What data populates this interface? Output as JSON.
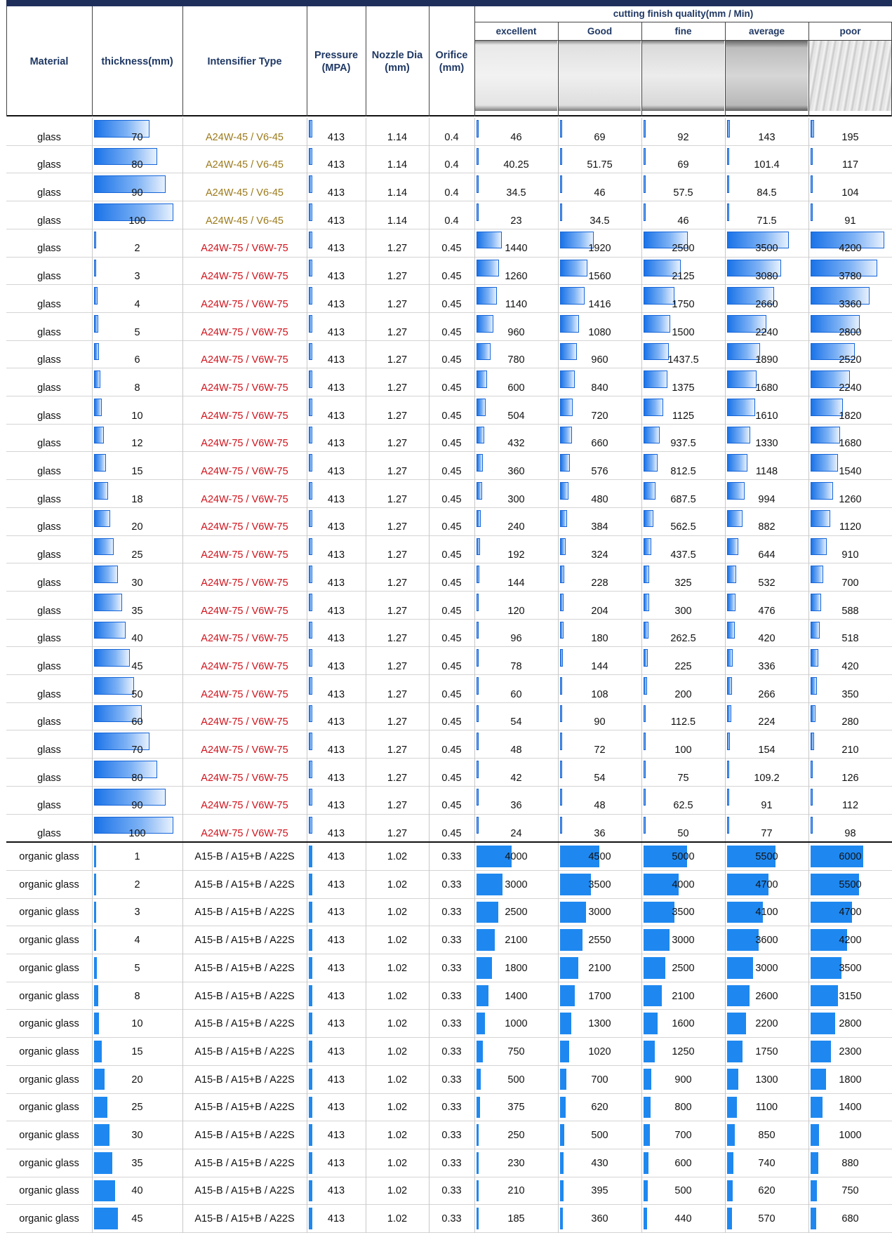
{
  "header": {
    "columns": [
      "Material",
      "thickness(mm)",
      "Intensifier Type",
      "Pressure (MPA)",
      "Nozzle Dia (mm)",
      "Orifice (mm)"
    ],
    "group_title": "cutting finish quality(mm / Min)",
    "quality_levels": [
      "excellent",
      "Good",
      "fine",
      "average",
      "poor"
    ]
  },
  "table": {
    "sections": [
      {
        "text_colors": {
          "A24W-45 / V6-45": "#9c7a1b",
          "A24W-75 / V6W-75": "#d0121b"
        },
        "rows": [
          [
            "glass",
            70,
            "A24W-45 / V6-45",
            413,
            1.14,
            0.4,
            46,
            69,
            92,
            143,
            195
          ],
          [
            "glass",
            80,
            "A24W-45 / V6-45",
            413,
            1.14,
            0.4,
            40.25,
            51.75,
            69,
            101.4,
            117
          ],
          [
            "glass",
            90,
            "A24W-45 / V6-45",
            413,
            1.14,
            0.4,
            34.5,
            46,
            57.5,
            84.5,
            104
          ],
          [
            "glass",
            100,
            "A24W-45 / V6-45",
            413,
            1.14,
            0.4,
            23,
            34.5,
            46,
            71.5,
            91
          ],
          [
            "glass",
            2,
            "A24W-75 / V6W-75",
            413,
            1.27,
            0.45,
            1440,
            1920,
            2500,
            3500,
            4200
          ],
          [
            "glass",
            3,
            "A24W-75 / V6W-75",
            413,
            1.27,
            0.45,
            1260,
            1560,
            2125,
            3080,
            3780
          ],
          [
            "glass",
            4,
            "A24W-75 / V6W-75",
            413,
            1.27,
            0.45,
            1140,
            1416,
            1750,
            2660,
            3360
          ],
          [
            "glass",
            5,
            "A24W-75 / V6W-75",
            413,
            1.27,
            0.45,
            960,
            1080,
            1500,
            2240,
            2800
          ],
          [
            "glass",
            6,
            "A24W-75 / V6W-75",
            413,
            1.27,
            0.45,
            780,
            960,
            1437.5,
            1890,
            2520
          ],
          [
            "glass",
            8,
            "A24W-75 / V6W-75",
            413,
            1.27,
            0.45,
            600,
            840,
            1375,
            1680,
            2240
          ],
          [
            "glass",
            10,
            "A24W-75 / V6W-75",
            413,
            1.27,
            0.45,
            504,
            720,
            1125,
            1610,
            1820
          ],
          [
            "glass",
            12,
            "A24W-75 / V6W-75",
            413,
            1.27,
            0.45,
            432,
            660,
            937.5,
            1330,
            1680
          ],
          [
            "glass",
            15,
            "A24W-75 / V6W-75",
            413,
            1.27,
            0.45,
            360,
            576,
            812.5,
            1148,
            1540
          ],
          [
            "glass",
            18,
            "A24W-75 / V6W-75",
            413,
            1.27,
            0.45,
            300,
            480,
            687.5,
            994,
            1260
          ],
          [
            "glass",
            20,
            "A24W-75 / V6W-75",
            413,
            1.27,
            0.45,
            240,
            384,
            562.5,
            882,
            1120
          ],
          [
            "glass",
            25,
            "A24W-75 / V6W-75",
            413,
            1.27,
            0.45,
            192,
            324,
            437.5,
            644,
            910
          ],
          [
            "glass",
            30,
            "A24W-75 / V6W-75",
            413,
            1.27,
            0.45,
            144,
            228,
            325,
            532,
            700
          ],
          [
            "glass",
            35,
            "A24W-75 / V6W-75",
            413,
            1.27,
            0.45,
            120,
            204,
            300,
            476,
            588
          ],
          [
            "glass",
            40,
            "A24W-75 / V6W-75",
            413,
            1.27,
            0.45,
            96,
            180,
            262.5,
            420,
            518
          ],
          [
            "glass",
            45,
            "A24W-75 / V6W-75",
            413,
            1.27,
            0.45,
            78,
            144,
            225,
            336,
            420
          ],
          [
            "glass",
            50,
            "A24W-75 / V6W-75",
            413,
            1.27,
            0.45,
            60,
            108,
            200,
            266,
            350
          ],
          [
            "glass",
            60,
            "A24W-75 / V6W-75",
            413,
            1.27,
            0.45,
            54,
            90,
            112.5,
            224,
            280
          ],
          [
            "glass",
            70,
            "A24W-75 / V6W-75",
            413,
            1.27,
            0.45,
            48,
            72,
            100,
            154,
            210
          ],
          [
            "glass",
            80,
            "A24W-75 / V6W-75",
            413,
            1.27,
            0.45,
            42,
            54,
            75,
            109.2,
            126
          ],
          [
            "glass",
            90,
            "A24W-75 / V6W-75",
            413,
            1.27,
            0.45,
            36,
            48,
            62.5,
            91,
            112
          ],
          [
            "glass",
            100,
            "A24W-75 / V6W-75",
            413,
            1.27,
            0.45,
            24,
            36,
            50,
            77,
            98
          ]
        ]
      },
      {
        "rows": [
          [
            "organic glass",
            1,
            "A15-B / A15+B / A22S",
            413,
            1.02,
            0.33,
            4000,
            4500,
            5000,
            5500,
            6000
          ],
          [
            "organic glass",
            2,
            "A15-B / A15+B / A22S",
            413,
            1.02,
            0.33,
            3000,
            3500,
            4000,
            4700,
            5500
          ],
          [
            "organic glass",
            3,
            "A15-B / A15+B / A22S",
            413,
            1.02,
            0.33,
            2500,
            3000,
            3500,
            4100,
            4700
          ],
          [
            "organic glass",
            4,
            "A15-B / A15+B / A22S",
            413,
            1.02,
            0.33,
            2100,
            2550,
            3000,
            3600,
            4200
          ],
          [
            "organic glass",
            5,
            "A15-B / A15+B / A22S",
            413,
            1.02,
            0.33,
            1800,
            2100,
            2500,
            3000,
            3500
          ],
          [
            "organic glass",
            8,
            "A15-B / A15+B / A22S",
            413,
            1.02,
            0.33,
            1400,
            1700,
            2100,
            2600,
            3150
          ],
          [
            "organic glass",
            10,
            "A15-B / A15+B / A22S",
            413,
            1.02,
            0.33,
            1000,
            1300,
            1600,
            2200,
            2800
          ],
          [
            "organic glass",
            15,
            "A15-B / A15+B / A22S",
            413,
            1.02,
            0.33,
            750,
            1020,
            1250,
            1750,
            2300
          ],
          [
            "organic glass",
            20,
            "A15-B / A15+B / A22S",
            413,
            1.02,
            0.33,
            500,
            700,
            900,
            1300,
            1800
          ],
          [
            "organic glass",
            25,
            "A15-B / A15+B / A22S",
            413,
            1.02,
            0.33,
            375,
            620,
            800,
            1100,
            1400
          ],
          [
            "organic glass",
            30,
            "A15-B / A15+B / A22S",
            413,
            1.02,
            0.33,
            250,
            500,
            700,
            850,
            1000
          ],
          [
            "organic glass",
            35,
            "A15-B / A15+B / A22S",
            413,
            1.02,
            0.33,
            230,
            430,
            600,
            740,
            880
          ],
          [
            "organic glass",
            40,
            "A15-B / A15+B / A22S",
            413,
            1.02,
            0.33,
            210,
            395,
            500,
            620,
            750
          ],
          [
            "organic glass",
            45,
            "A15-B / A15+B / A22S",
            413,
            1.02,
            0.33,
            185,
            360,
            440,
            570,
            680
          ]
        ]
      }
    ]
  }
}
